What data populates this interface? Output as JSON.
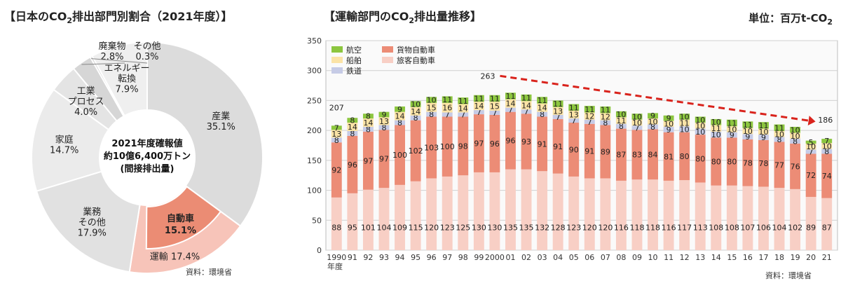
{
  "donut_title": {
    "before": "【日本のCO",
    "sub": "2",
    "after": "排出部門別割合（2021年度）】"
  },
  "bar_title": {
    "before": "【運輸部門のCO",
    "sub": "2",
    "after": "排出量推移】"
  },
  "unit": {
    "before": "単位：百万t-CO",
    "sub": "2"
  },
  "donut_source": "資料：環境省",
  "bar_source": "資料：環境省",
  "colors": {
    "industry": "#dcdcdc",
    "transport": "#f7c4b9",
    "automobile": "#eb8c74",
    "business": "#e1e1e1",
    "household": "#ebebeb",
    "process": "#e4e4e4",
    "waste": "#d6d6d6",
    "other": "#cfcfcf",
    "energy": "#efefef",
    "aviation": "#8cc63f",
    "shipping": "#fbe3a6",
    "rail": "#c6cbe6",
    "freight": "#ec8c76",
    "passenger": "#f8cfc5",
    "arrow": "#d9231c"
  },
  "chart_data": [
    {
      "type": "pie",
      "variant": "donut",
      "title": "【日本のCO2排出部門別割合（2021年度）】",
      "center_lines": [
        "2021年度確報値",
        "約10億6,400万トン",
        "(間接排出量)"
      ],
      "slices": [
        {
          "key": "industry",
          "name_lines": [
            "産業"
          ],
          "value": 35.1,
          "value_label": "35.1%"
        },
        {
          "key": "transport",
          "name_lines": [
            "運輸"
          ],
          "value": 17.4,
          "value_label": "17.4%",
          "sub_slice": {
            "key": "automobile",
            "name_lines": [
              "自動車"
            ],
            "value": 15.1,
            "value_label": "15.1%"
          }
        },
        {
          "key": "business",
          "name_lines": [
            "業務",
            "その他"
          ],
          "value": 17.9,
          "value_label": "17.9%"
        },
        {
          "key": "household",
          "name_lines": [
            "家庭"
          ],
          "value": 14.7,
          "value_label": "14.7%"
        },
        {
          "key": "process",
          "name_lines": [
            "工業",
            "プロセス"
          ],
          "value": 4.0,
          "value_label": "4.0%"
        },
        {
          "key": "waste",
          "name_lines": [
            "廃棄物"
          ],
          "value": 2.8,
          "value_label": "2.8%"
        },
        {
          "key": "other",
          "name_lines": [
            "その他"
          ],
          "value": 0.3,
          "value_label": "0.3%"
        },
        {
          "key": "energy",
          "name_lines": [
            "エネルギー",
            "転換"
          ],
          "value": 7.9,
          "value_label": "7.9%"
        }
      ]
    },
    {
      "type": "bar",
      "stacked": true,
      "title": "【運輸部門のCO2排出量推移】",
      "unit": "単位：百万t-CO2",
      "ylim": [
        0,
        350
      ],
      "yticks": [
        0,
        50,
        100,
        150,
        200,
        250,
        300,
        350
      ],
      "grid": true,
      "legend_position": "top-left",
      "x_sublabel": "年度",
      "categories": [
        "1990",
        "91",
        "92",
        "93",
        "94",
        "95",
        "96",
        "97",
        "98",
        "99",
        "2000",
        "01",
        "02",
        "03",
        "04",
        "05",
        "06",
        "07",
        "08",
        "09",
        "10",
        "11",
        "12",
        "13",
        "14",
        "15",
        "16",
        "17",
        "18",
        "19",
        "20",
        "21"
      ],
      "series": [
        {
          "name": "旅客自動車",
          "key": "passenger",
          "values": [
            88,
            95,
            101,
            104,
            109,
            115,
            120,
            123,
            125,
            130,
            130,
            135,
            135,
            132,
            128,
            123,
            120,
            120,
            116,
            118,
            118,
            116,
            117,
            113,
            108,
            108,
            107,
            106,
            104,
            102,
            89,
            87
          ]
        },
        {
          "name": "貨物自動車",
          "key": "freight",
          "values": [
            92,
            96,
            97,
            97,
            100,
            102,
            103,
            100,
            98,
            97,
            96,
            96,
            93,
            91,
            91,
            90,
            91,
            89,
            87,
            83,
            84,
            81,
            80,
            80,
            80,
            80,
            78,
            78,
            77,
            76,
            72,
            74
          ]
        },
        {
          "name": "鉄道",
          "key": "rail",
          "values": [
            8,
            8,
            8,
            8,
            8,
            8,
            8,
            7,
            7,
            7,
            7,
            7,
            7,
            8,
            7,
            7,
            7,
            8,
            8,
            7,
            8,
            9,
            10,
            10,
            10,
            9,
            9,
            9,
            8,
            8,
            7,
            8
          ]
        },
        {
          "name": "船舶",
          "key": "shipping",
          "values": [
            13,
            14,
            14,
            13,
            14,
            14,
            15,
            16,
            14,
            14,
            15,
            14,
            14,
            14,
            13,
            13,
            12,
            12,
            11,
            10,
            10,
            10,
            11,
            10,
            11,
            10,
            10,
            10,
            10,
            10,
            10,
            10
          ]
        },
        {
          "name": "航空",
          "key": "aviation",
          "values": [
            7,
            8,
            8,
            9,
            9,
            10,
            10,
            11,
            11,
            11,
            11,
            11,
            11,
            11,
            11,
            11,
            11,
            11,
            10,
            10,
            9,
            9,
            10,
            10,
            10,
            11,
            11,
            11,
            11,
            10,
            5,
            7
          ]
        }
      ],
      "annotations": [
        {
          "category": "1990",
          "label": "207"
        },
        {
          "category": "01",
          "label": "263"
        },
        {
          "category": "21",
          "label": "186"
        }
      ],
      "trend_arrow": {
        "from": "01",
        "to": "21"
      }
    }
  ]
}
